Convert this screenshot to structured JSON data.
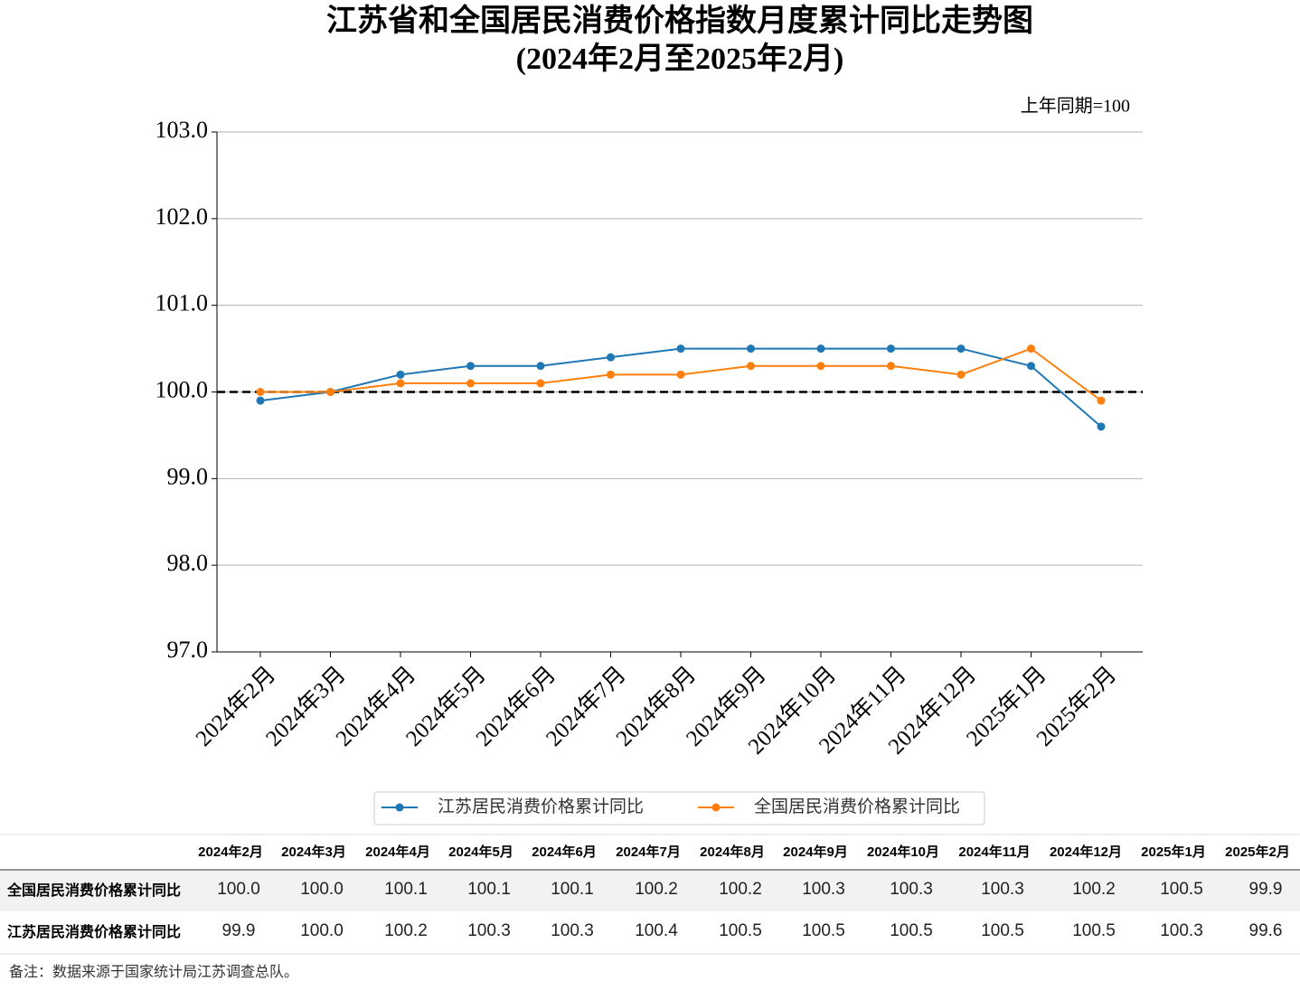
{
  "chart_data": {
    "type": "line",
    "title": "江苏省和全国居民消费价格指数月度累计同比走势图",
    "subtitle": "(2024年2月至2025年2月)",
    "annotation": "上年同期=100",
    "categories": [
      "2024年2月",
      "2024年3月",
      "2024年4月",
      "2024年5月",
      "2024年6月",
      "2024年7月",
      "2024年8月",
      "2024年9月",
      "2024年10月",
      "2024年11月",
      "2024年12月",
      "2025年1月",
      "2025年2月"
    ],
    "series": [
      {
        "name": "江苏居民消费价格累计同比",
        "color": "#1f77b4",
        "values": [
          99.9,
          100.0,
          100.2,
          100.3,
          100.3,
          100.4,
          100.5,
          100.5,
          100.5,
          100.5,
          100.5,
          100.3,
          99.6
        ],
        "value_labels": [
          "99.9",
          "100.0",
          "100.2",
          "100.3",
          "100.3",
          "100.4",
          "100.5",
          "100.5",
          "100.5",
          "100.5",
          "100.5",
          "100.3",
          "99.6"
        ]
      },
      {
        "name": "全国居民消费价格累计同比",
        "color": "#ff7f0e",
        "values": [
          100.0,
          100.0,
          100.1,
          100.1,
          100.1,
          100.2,
          100.2,
          100.3,
          100.3,
          100.3,
          100.2,
          100.5,
          99.9
        ],
        "value_labels": [
          "100.0",
          "100.0",
          "100.1",
          "100.1",
          "100.1",
          "100.2",
          "100.2",
          "100.3",
          "100.3",
          "100.3",
          "100.2",
          "100.5",
          "99.9"
        ]
      }
    ],
    "ylim": [
      97,
      103
    ],
    "yticks": [
      {
        "value": 97,
        "label": "97.0"
      },
      {
        "value": 98,
        "label": "98.0"
      },
      {
        "value": 99,
        "label": "99.0"
      },
      {
        "value": 100,
        "label": "100.0"
      },
      {
        "value": 101,
        "label": "101.0"
      },
      {
        "value": 102,
        "label": "102.0"
      },
      {
        "value": 103,
        "label": "103.0"
      }
    ],
    "hline": 100,
    "grid": true,
    "legend": "bottom",
    "footnote": "备注：数据来源于国家统计局江苏调查总队。"
  }
}
